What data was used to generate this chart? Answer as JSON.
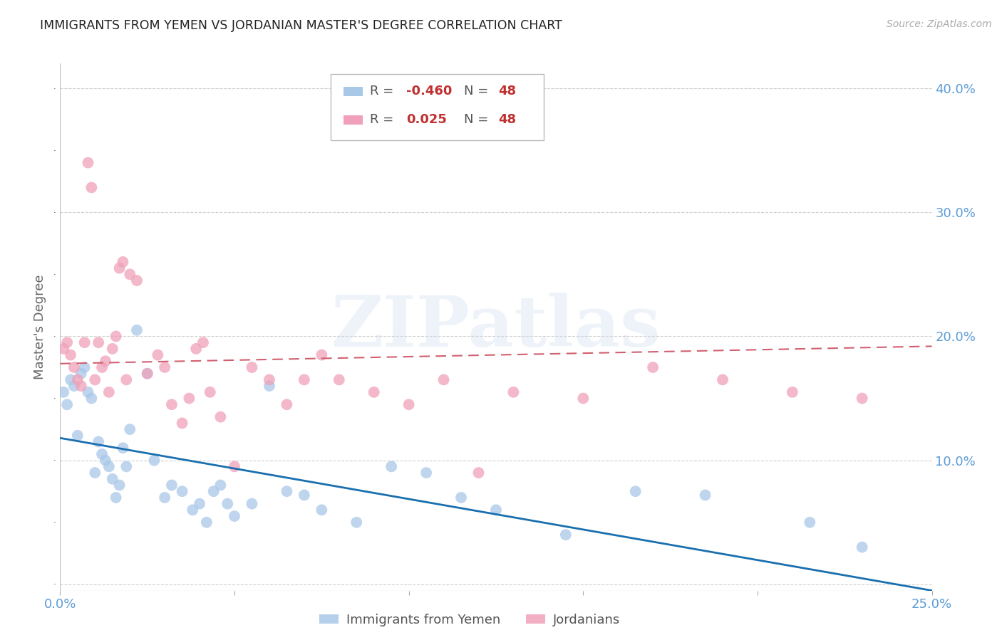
{
  "title": "IMMIGRANTS FROM YEMEN VS JORDANIAN MASTER'S DEGREE CORRELATION CHART",
  "source": "Source: ZipAtlas.com",
  "ylabel": "Master's Degree",
  "watermark": "ZIPatlas",
  "xlim": [
    0.0,
    0.25
  ],
  "ylim": [
    -0.005,
    0.42
  ],
  "xticks": [
    0.0,
    0.05,
    0.1,
    0.15,
    0.2,
    0.25
  ],
  "xtick_labels": [
    "0.0%",
    "",
    "",
    "",
    "",
    "25.0%"
  ],
  "yticks": [
    0.0,
    0.1,
    0.2,
    0.3,
    0.4
  ],
  "ytick_labels": [
    "",
    "10.0%",
    "20.0%",
    "30.0%",
    "40.0%"
  ],
  "blue_scatter_color": "#a8c8e8",
  "pink_scatter_color": "#f0a0b8",
  "blue_line_color": "#1a6faf",
  "pink_line_color": "#d06070",
  "tick_label_color": "#5b9bd5",
  "grid_color": "#d0d0d0",
  "background_color": "#ffffff",
  "blue_points_x": [
    0.001,
    0.002,
    0.003,
    0.004,
    0.005,
    0.006,
    0.007,
    0.008,
    0.009,
    0.01,
    0.011,
    0.012,
    0.013,
    0.014,
    0.015,
    0.016,
    0.017,
    0.018,
    0.019,
    0.02,
    0.022,
    0.025,
    0.027,
    0.03,
    0.032,
    0.035,
    0.038,
    0.04,
    0.042,
    0.044,
    0.046,
    0.048,
    0.05,
    0.055,
    0.06,
    0.065,
    0.07,
    0.075,
    0.085,
    0.095,
    0.105,
    0.115,
    0.125,
    0.145,
    0.165,
    0.185,
    0.215,
    0.23
  ],
  "blue_points_y": [
    0.155,
    0.145,
    0.165,
    0.16,
    0.12,
    0.17,
    0.175,
    0.155,
    0.15,
    0.09,
    0.115,
    0.105,
    0.1,
    0.095,
    0.085,
    0.07,
    0.08,
    0.11,
    0.095,
    0.125,
    0.205,
    0.17,
    0.1,
    0.07,
    0.08,
    0.075,
    0.06,
    0.065,
    0.05,
    0.075,
    0.08,
    0.065,
    0.055,
    0.065,
    0.16,
    0.075,
    0.072,
    0.06,
    0.05,
    0.095,
    0.09,
    0.07,
    0.06,
    0.04,
    0.075,
    0.072,
    0.05,
    0.03
  ],
  "pink_points_x": [
    0.001,
    0.002,
    0.003,
    0.004,
    0.005,
    0.006,
    0.007,
    0.008,
    0.009,
    0.01,
    0.011,
    0.012,
    0.013,
    0.014,
    0.015,
    0.016,
    0.017,
    0.018,
    0.019,
    0.02,
    0.022,
    0.025,
    0.028,
    0.03,
    0.032,
    0.035,
    0.037,
    0.039,
    0.041,
    0.043,
    0.046,
    0.05,
    0.055,
    0.06,
    0.065,
    0.07,
    0.075,
    0.08,
    0.09,
    0.1,
    0.11,
    0.12,
    0.13,
    0.15,
    0.17,
    0.19,
    0.21,
    0.23
  ],
  "pink_points_y": [
    0.19,
    0.195,
    0.185,
    0.175,
    0.165,
    0.16,
    0.195,
    0.34,
    0.32,
    0.165,
    0.195,
    0.175,
    0.18,
    0.155,
    0.19,
    0.2,
    0.255,
    0.26,
    0.165,
    0.25,
    0.245,
    0.17,
    0.185,
    0.175,
    0.145,
    0.13,
    0.15,
    0.19,
    0.195,
    0.155,
    0.135,
    0.095,
    0.175,
    0.165,
    0.145,
    0.165,
    0.185,
    0.165,
    0.155,
    0.145,
    0.165,
    0.09,
    0.155,
    0.15,
    0.175,
    0.165,
    0.155,
    0.15
  ],
  "blue_line_x0": 0.0,
  "blue_line_y0": 0.118,
  "blue_line_x1": 0.25,
  "blue_line_y1": -0.005,
  "pink_line_x0": 0.0,
  "pink_line_y0": 0.178,
  "pink_line_x1": 0.25,
  "pink_line_y1": 0.192,
  "legend_R1": "-0.460",
  "legend_R2": "0.025",
  "legend_N": "48",
  "legend_label1": "Immigrants from Yemen",
  "legend_label2": "Jordanians",
  "title_color": "#222222",
  "source_color": "#aaaaaa"
}
